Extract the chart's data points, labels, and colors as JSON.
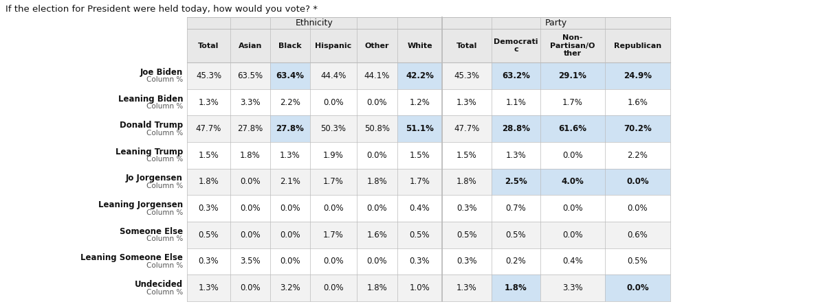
{
  "title": "If the election for President were held today, how would you vote? *",
  "rows": [
    {
      "label": "Joe Biden",
      "sublabel": "Column %",
      "values": [
        "45.3%",
        "63.5%",
        "63.4%",
        "44.4%",
        "44.1%",
        "42.2%",
        "45.3%",
        "63.2%",
        "29.1%",
        "24.9%"
      ],
      "bold_indices": [
        2,
        5,
        7,
        8,
        9
      ],
      "highlight_indices": [
        2,
        5,
        7,
        8,
        9
      ]
    },
    {
      "label": "Leaning Biden",
      "sublabel": "Column %",
      "values": [
        "1.3%",
        "3.3%",
        "2.2%",
        "0.0%",
        "0.0%",
        "1.2%",
        "1.3%",
        "1.1%",
        "1.7%",
        "1.6%"
      ],
      "bold_indices": [],
      "highlight_indices": []
    },
    {
      "label": "Donald Trump",
      "sublabel": "Column %",
      "values": [
        "47.7%",
        "27.8%",
        "27.8%",
        "50.3%",
        "50.8%",
        "51.1%",
        "47.7%",
        "28.8%",
        "61.6%",
        "70.2%"
      ],
      "bold_indices": [
        2,
        5,
        7,
        8,
        9
      ],
      "highlight_indices": [
        2,
        5,
        7,
        8,
        9
      ]
    },
    {
      "label": "Leaning Trump",
      "sublabel": "Column %",
      "values": [
        "1.5%",
        "1.8%",
        "1.3%",
        "1.9%",
        "0.0%",
        "1.5%",
        "1.5%",
        "1.3%",
        "0.0%",
        "2.2%"
      ],
      "bold_indices": [],
      "highlight_indices": []
    },
    {
      "label": "Jo Jorgensen",
      "sublabel": "Column %",
      "values": [
        "1.8%",
        "0.0%",
        "2.1%",
        "1.7%",
        "1.8%",
        "1.7%",
        "1.8%",
        "2.5%",
        "4.0%",
        "0.0%"
      ],
      "bold_indices": [
        7,
        8,
        9
      ],
      "highlight_indices": [
        7,
        8,
        9
      ]
    },
    {
      "label": "Leaning Jorgensen",
      "sublabel": "Column %",
      "values": [
        "0.3%",
        "0.0%",
        "0.0%",
        "0.0%",
        "0.0%",
        "0.4%",
        "0.3%",
        "0.7%",
        "0.0%",
        "0.0%"
      ],
      "bold_indices": [],
      "highlight_indices": []
    },
    {
      "label": "Someone Else",
      "sublabel": "Column %",
      "values": [
        "0.5%",
        "0.0%",
        "0.0%",
        "1.7%",
        "1.6%",
        "0.5%",
        "0.5%",
        "0.5%",
        "0.0%",
        "0.6%"
      ],
      "bold_indices": [],
      "highlight_indices": []
    },
    {
      "label": "Leaning Someone Else",
      "sublabel": "Column %",
      "values": [
        "0.3%",
        "3.5%",
        "0.0%",
        "0.0%",
        "0.0%",
        "0.3%",
        "0.3%",
        "0.2%",
        "0.4%",
        "0.5%"
      ],
      "bold_indices": [],
      "highlight_indices": []
    },
    {
      "label": "Undecided",
      "sublabel": "Column %",
      "values": [
        "1.3%",
        "0.0%",
        "3.2%",
        "0.0%",
        "1.8%",
        "1.0%",
        "1.3%",
        "1.8%",
        "3.3%",
        "0.0%"
      ],
      "bold_indices": [
        7,
        9
      ],
      "highlight_indices": [
        7,
        9
      ]
    }
  ],
  "col_headers": [
    "Total",
    "Asian",
    "Black",
    "Hispanic",
    "Other",
    "White",
    "Total",
    "Democrati\nc",
    "Non-\nPartisan/O\nther",
    "Republican"
  ],
  "bg_color": "#ffffff",
  "header_bg": "#e8e8e8",
  "highlight_cell_color": "#cfe2f3",
  "border_color": "#bbbbbb",
  "row_bg_even": "#f2f2f2",
  "row_bg_odd": "#ffffff",
  "ethnicity_cols": [
    0,
    1,
    2,
    3,
    4,
    5
  ],
  "party_cols": [
    6,
    7,
    8,
    9
  ]
}
